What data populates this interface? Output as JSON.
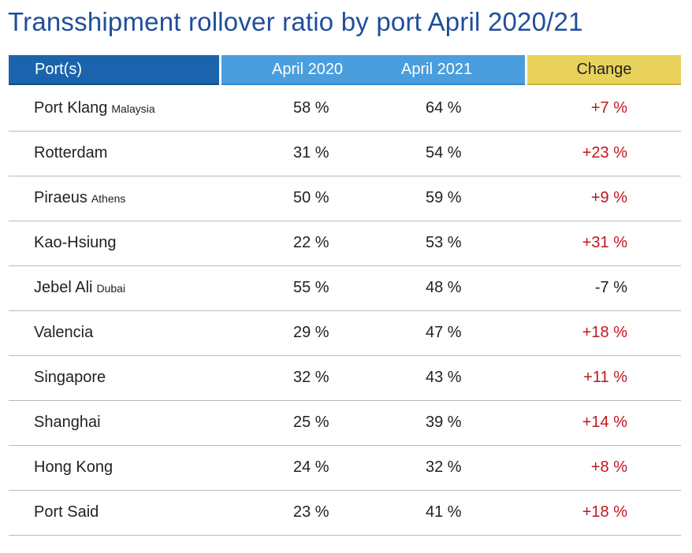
{
  "title": "Transshipment rollover ratio by port April 2020/21",
  "chart_data": {
    "type": "table",
    "columns": [
      "Port(s)",
      "April 2020",
      "April 2021",
      "Change"
    ],
    "rows": [
      {
        "port": "Port Klang",
        "sub": "Malaysia",
        "april_2020": "58 %",
        "april_2021": "64 %",
        "change": "+7 %"
      },
      {
        "port": "Rotterdam",
        "sub": "",
        "april_2020": "31 %",
        "april_2021": "54 %",
        "change": "+23 %"
      },
      {
        "port": "Piraeus",
        "sub": "Athens",
        "april_2020": "50 %",
        "april_2021": "59 %",
        "change": "+9 %"
      },
      {
        "port": "Kao-Hsiung",
        "sub": "",
        "april_2020": "22 %",
        "april_2021": "53 %",
        "change": "+31 %"
      },
      {
        "port": "Jebel Ali",
        "sub": "Dubai",
        "april_2020": "55 %",
        "april_2021": "48 %",
        "change": "-7 %"
      },
      {
        "port": "Valencia",
        "sub": "",
        "april_2020": "29 %",
        "april_2021": "47 %",
        "change": "+18 %"
      },
      {
        "port": "Singapore",
        "sub": "",
        "april_2020": "32 %",
        "april_2021": "43 %",
        "change": "+11 %"
      },
      {
        "port": "Shanghai",
        "sub": "",
        "april_2020": "25 %",
        "april_2021": "39 %",
        "change": "+14 %"
      },
      {
        "port": "Hong Kong",
        "sub": "",
        "april_2020": "24 %",
        "april_2021": "32 %",
        "change": "+8 %"
      },
      {
        "port": "Port Said",
        "sub": "",
        "april_2020": "23 %",
        "april_2021": "41 %",
        "change": "+18 %"
      }
    ]
  },
  "colors": {
    "title": "#1f4e9c",
    "header_port_bg": "#1b64ad",
    "header_years_bg": "#4a9ede",
    "header_change_bg": "#e9d25c",
    "positive_change": "#c0161e",
    "negative_change": "#222222"
  }
}
